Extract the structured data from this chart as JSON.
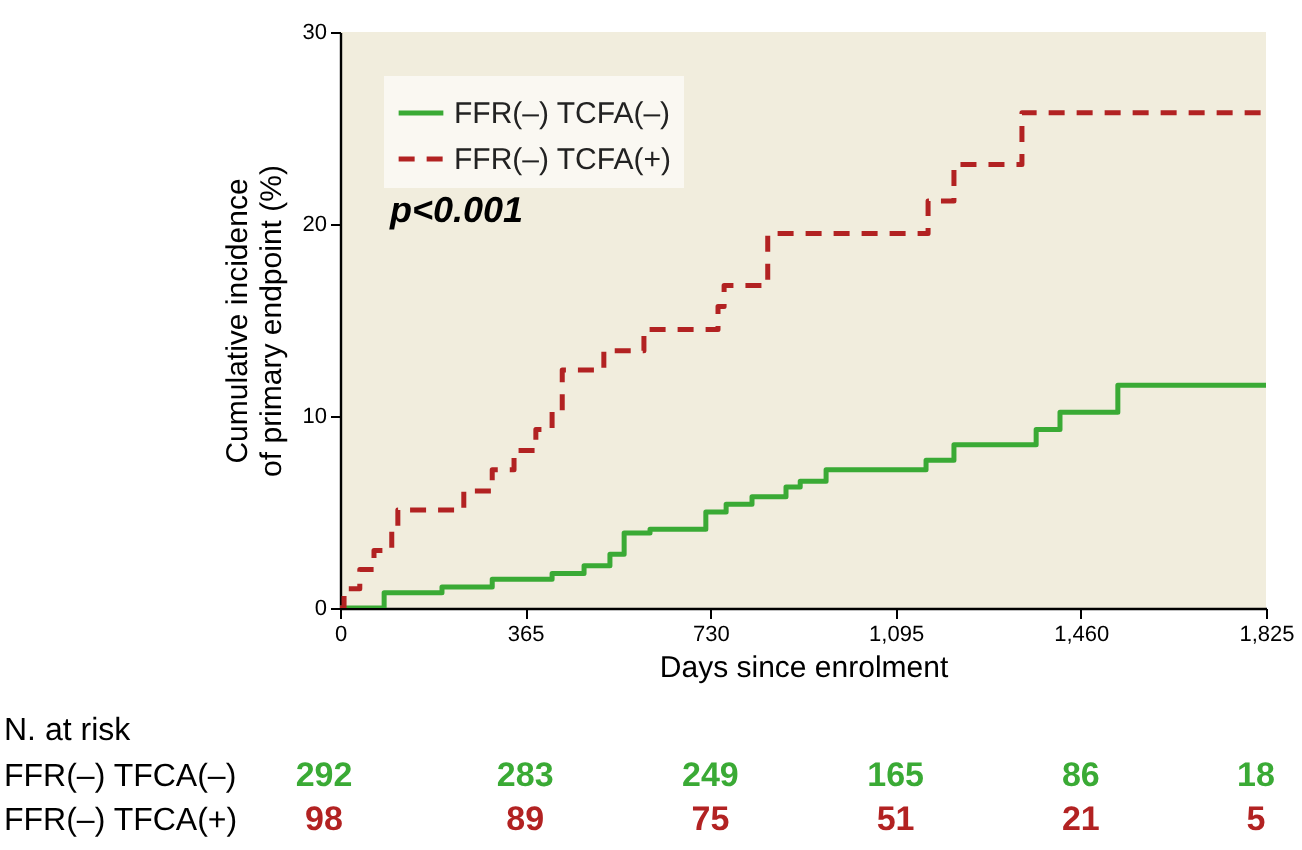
{
  "chart_data": {
    "type": "step",
    "xlabel": "Days since enrolment",
    "ylabel": "Cumulative incidence\nof primary endpoint (%)",
    "xlim": [
      0,
      1825
    ],
    "xticks": [
      {
        "value": 0,
        "label": "0"
      },
      {
        "value": 365,
        "label": "365"
      },
      {
        "value": 730,
        "label": "730"
      },
      {
        "value": 1095,
        "label": "1,095"
      },
      {
        "value": 1460,
        "label": "1,460"
      },
      {
        "value": 1825,
        "label": "1,825"
      }
    ],
    "ylim": [
      0,
      30
    ],
    "yticks": [
      0,
      10,
      20,
      30
    ],
    "grid": false,
    "legend": "top left",
    "series": [
      {
        "name": "FFR(–) TCFA(–)",
        "color": "#3aaa35",
        "line_style": "solid",
        "x": [
          0,
          87,
          201,
          300,
          418,
          481,
          532,
          560,
          611,
          721,
          761,
          812,
          879,
          907,
          958,
          1155,
          1210,
          1372,
          1419,
          1533,
          1825
        ],
        "values": [
          0,
          0.8,
          1.1,
          1.5,
          1.8,
          2.2,
          2.8,
          3.9,
          4.1,
          5.0,
          5.4,
          5.8,
          6.3,
          6.6,
          7.2,
          7.7,
          8.5,
          9.3,
          10.2,
          11.6,
          11.6
        ]
      },
      {
        "name": "FFR(–) TCFA(+)",
        "color": "#b22222",
        "line_style": "dashed",
        "x": [
          0,
          8,
          39,
          67,
          102,
          114,
          244,
          300,
          343,
          386,
          418,
          438,
          520,
          599,
          745,
          757,
          843,
          1159,
          1210,
          1344,
          1825
        ],
        "values": [
          0,
          1.0,
          2.0,
          3.0,
          4.2,
          5.1,
          6.1,
          7.2,
          8.2,
          9.3,
          10.3,
          12.4,
          13.4,
          14.5,
          15.7,
          16.8,
          19.5,
          21.2,
          23.1,
          25.8,
          25.8
        ]
      }
    ],
    "annotations": [
      "p<0.001",
      "N. at risk",
      "FFR(–) TFCA(–)",
      "292",
      "283",
      "249",
      "165",
      "86",
      "18",
      "FFR(–) TFCA(+)",
      "98",
      "89",
      "75",
      "51",
      "21",
      "5"
    ]
  }
}
